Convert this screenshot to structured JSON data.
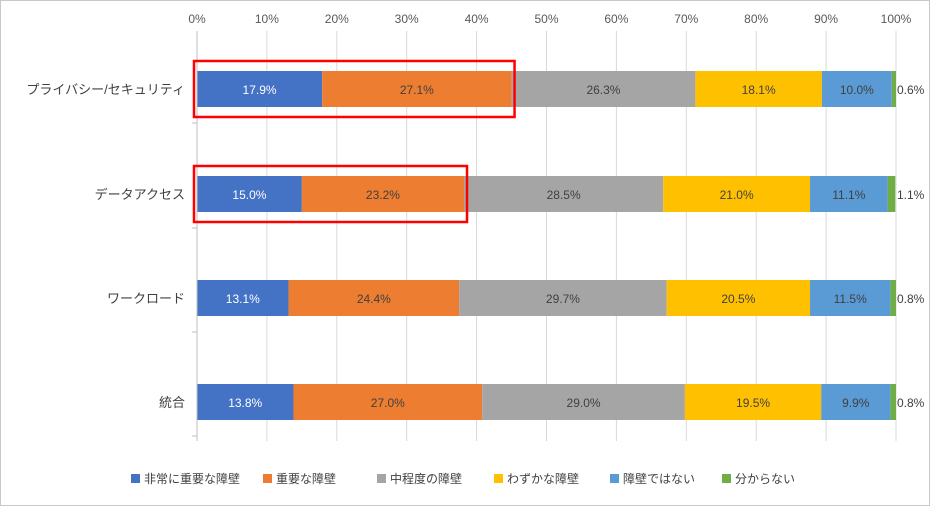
{
  "chart_data": {
    "type": "bar",
    "orientation": "horizontal",
    "stacked": "percent",
    "categories": [
      "プライバシー/セキュリティ",
      "データアクセス",
      "ワークロード",
      "統合"
    ],
    "series": [
      {
        "name": "非常に重要な障壁",
        "values": [
          17.9,
          15.0,
          13.1,
          13.8
        ],
        "labels": [
          "17.9%",
          "15.0%",
          "13.1%",
          "13.8%"
        ],
        "color": "#4472C4"
      },
      {
        "name": "重要な障壁",
        "values": [
          27.1,
          23.2,
          24.4,
          27.0
        ],
        "labels": [
          "27.1%",
          "23.2%",
          "24.4%",
          "27.0%"
        ],
        "color": "#ED7D31"
      },
      {
        "name": "中程度の障壁",
        "values": [
          26.3,
          28.5,
          29.7,
          29.0
        ],
        "labels": [
          "26.3%",
          "28.5%",
          "29.7%",
          "29.0%"
        ],
        "color": "#A5A5A5"
      },
      {
        "name": "わずかな障壁",
        "values": [
          18.1,
          21.0,
          20.5,
          19.5
        ],
        "labels": [
          "18.1%",
          "21.0%",
          "20.5%",
          "19.5%"
        ],
        "color": "#FFC000"
      },
      {
        "name": "障壁ではない",
        "values": [
          10.0,
          11.1,
          11.5,
          9.9
        ],
        "labels": [
          "10.0%",
          "11.1%",
          "11.5%",
          "9.9%"
        ],
        "color": "#5B9BD5"
      },
      {
        "name": "分からない",
        "values": [
          0.6,
          1.1,
          0.8,
          0.8
        ],
        "labels": [
          "0.6%",
          "1.1%",
          "0.8%",
          "0.8%"
        ],
        "color": "#70AD47"
      }
    ],
    "xlim": [
      0,
      100
    ],
    "x_tick_labels": [
      "0%",
      "10%",
      "20%",
      "30%",
      "40%",
      "50%",
      "60%",
      "70%",
      "80%",
      "90%",
      "100%"
    ],
    "x_axis_position": "top",
    "grid": "vertical",
    "legend": "bottom",
    "highlight": {
      "color": "#FF0000",
      "categories": [
        0,
        1
      ],
      "series": [
        0,
        1
      ]
    },
    "title": "",
    "xlabel": "",
    "ylabel": ""
  }
}
